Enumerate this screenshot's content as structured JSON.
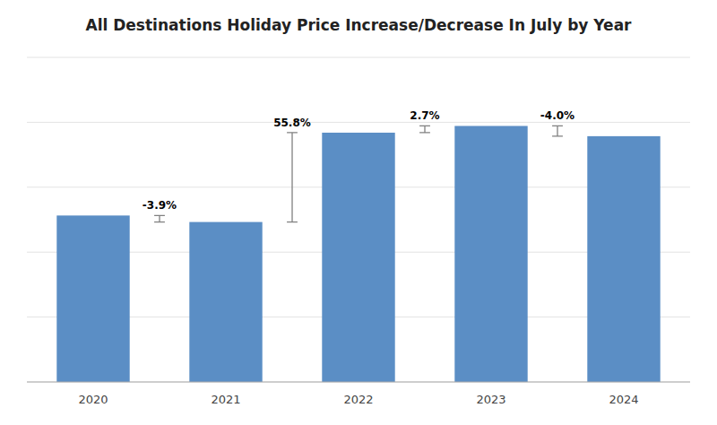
{
  "chart_data": {
    "type": "bar",
    "title": "All Destinations Holiday Price Increase/Decrease In July by Year",
    "categories": [
      "2020",
      "2021",
      "2022",
      "2023",
      "2024"
    ],
    "values": [
      100,
      96.1,
      149.77,
      153.81,
      147.66
    ],
    "color": "#5B8EC5",
    "ylim": [
      0,
      195
    ],
    "yticks": [
      0,
      39,
      78,
      117,
      156,
      195
    ],
    "grid": true,
    "tick_labels": "x",
    "annotations": [
      "-3.9%",
      "55.8%",
      "2.7%",
      "-4.0%"
    ]
  }
}
